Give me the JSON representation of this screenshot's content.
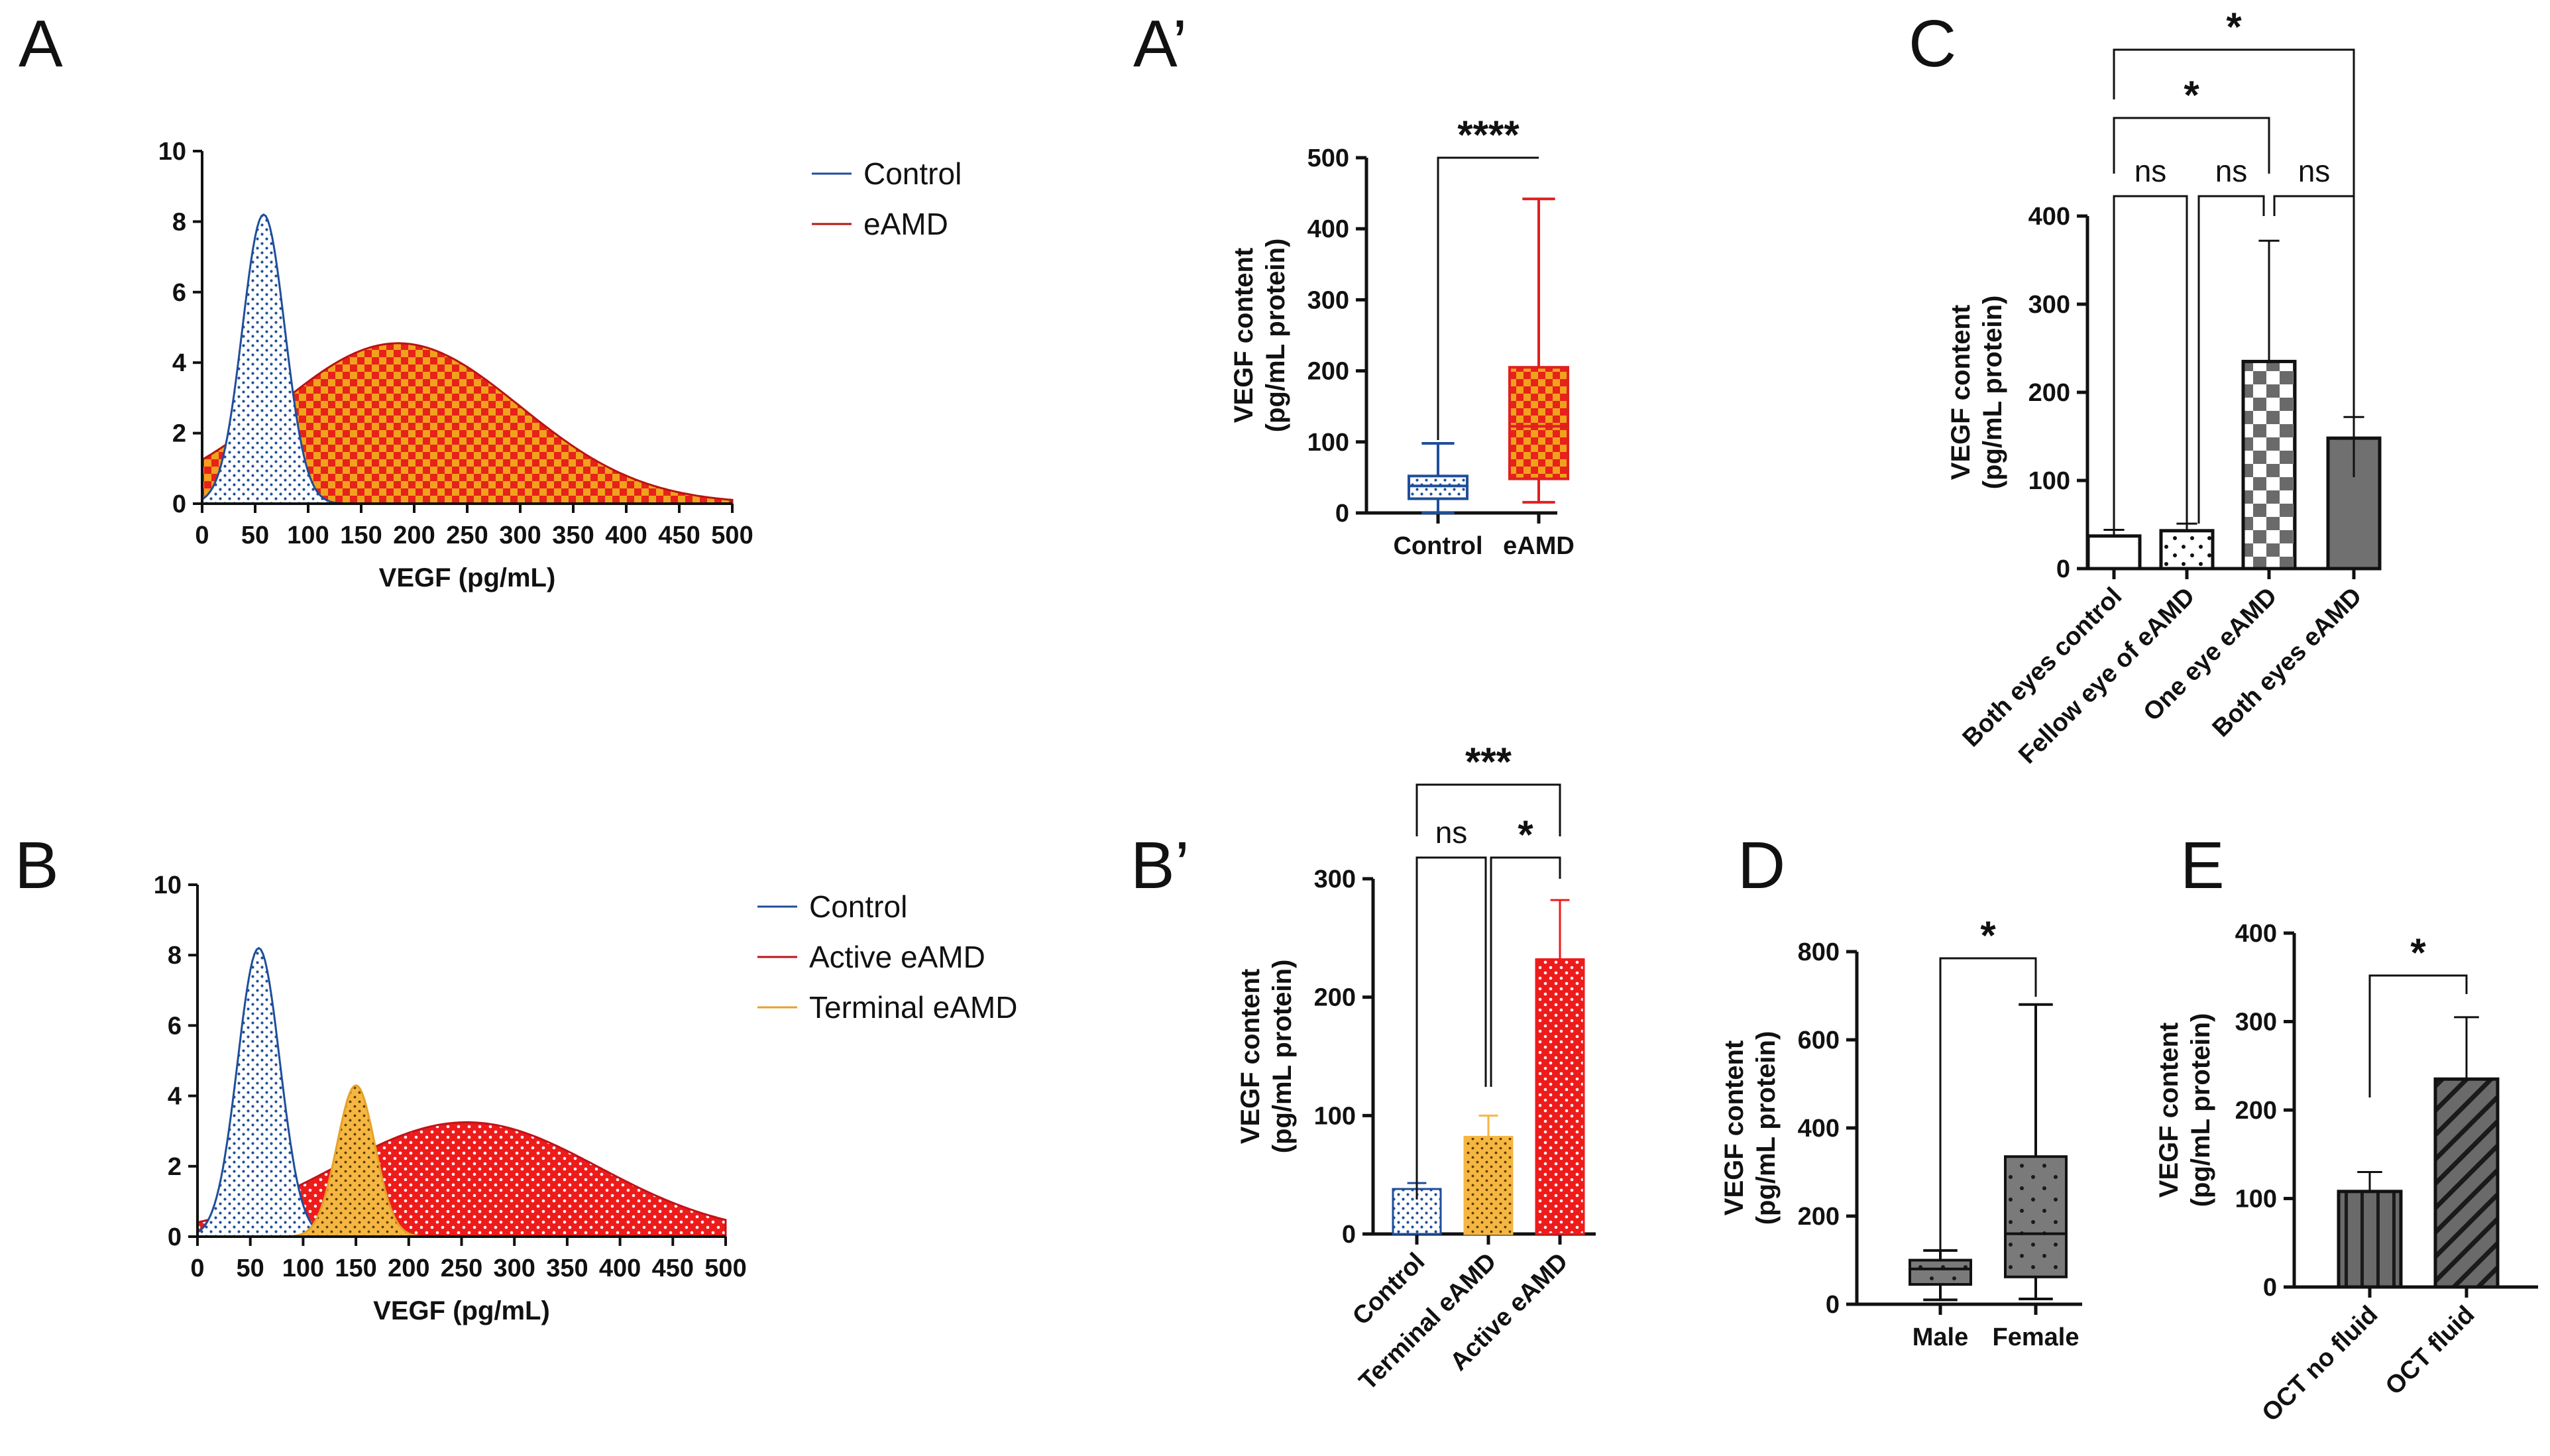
{
  "figure_labels": {
    "A": "A",
    "A_prime": "A’",
    "B": "B",
    "B_prime": "B’",
    "C": "C",
    "D": "D",
    "E": "E"
  },
  "colors": {
    "control": "#1f4e9b",
    "eamd": "#e41a1c",
    "eamd_check": "#f2a21b",
    "terminal": "#f5b642",
    "active": "#ee1b1b",
    "gray": "#707070",
    "darkgray": "#505050"
  },
  "chart_data": [
    {
      "id": "A",
      "type": "area",
      "title": "",
      "xlabel": "VEGF (pg/mL)",
      "ylabel": "",
      "xlim": [
        0,
        500
      ],
      "ylim": [
        0,
        10
      ],
      "xticks": [
        "0",
        "50",
        "100",
        "150",
        "200",
        "250",
        "300",
        "350",
        "400",
        "450",
        "500"
      ],
      "yticks": [
        "0",
        "2",
        "4",
        "6",
        "8",
        "10"
      ],
      "legend": [
        "Control",
        "eAMD"
      ],
      "legend_position": "right",
      "series": [
        {
          "name": "Control",
          "distribution": "normal",
          "mean": 58,
          "sd": 20,
          "peak": 8.2
        },
        {
          "name": "eAMD",
          "distribution": "normal",
          "mean": 185,
          "sd": 115,
          "peak": 4.55
        }
      ]
    },
    {
      "id": "B",
      "type": "area",
      "title": "",
      "xlabel": "VEGF (pg/mL)",
      "ylabel": "",
      "xlim": [
        0,
        500
      ],
      "ylim": [
        0,
        10
      ],
      "xticks": [
        "0",
        "50",
        "100",
        "150",
        "200",
        "250",
        "300",
        "350",
        "400",
        "450",
        "500"
      ],
      "yticks": [
        "0",
        "2",
        "4",
        "6",
        "8",
        "10"
      ],
      "legend": [
        "Control",
        "Active eAMD",
        "Terminal eAMD"
      ],
      "legend_position": "right",
      "series": [
        {
          "name": "Control",
          "distribution": "normal",
          "mean": 58,
          "sd": 20,
          "peak": 8.2
        },
        {
          "name": "Active eAMD",
          "distribution": "normal",
          "mean": 255,
          "sd": 125,
          "peak": 3.25
        },
        {
          "name": "Terminal eAMD",
          "distribution": "normal",
          "mean": 150,
          "sd": 18,
          "peak": 4.3
        }
      ]
    },
    {
      "id": "A_prime",
      "type": "box",
      "ylabel": "VEGF content\n(pg/mL protein)",
      "ylim": [
        0,
        500
      ],
      "yticks": [
        "0",
        "100",
        "200",
        "300",
        "400",
        "500"
      ],
      "categories": [
        "Control",
        "eAMD"
      ],
      "boxes": [
        {
          "name": "Control",
          "min": 0,
          "q1": 20,
          "median": 38,
          "q3": 52,
          "max": 98
        },
        {
          "name": "eAMD",
          "min": 15,
          "q1": 48,
          "median": 122,
          "q3": 205,
          "max": 442
        }
      ],
      "significance": [
        {
          "pair": [
            "Control",
            "eAMD"
          ],
          "label": "****"
        }
      ]
    },
    {
      "id": "B_prime",
      "type": "bar",
      "ylabel": "VEGF content\n(pg/mL protein)",
      "ylim": [
        0,
        300
      ],
      "yticks": [
        "0",
        "100",
        "200",
        "300"
      ],
      "categories": [
        "Control",
        "Terminal eAMD",
        "Active eAMD"
      ],
      "values": [
        38,
        82,
        232
      ],
      "errors": [
        5,
        18,
        50
      ],
      "significance": [
        {
          "pair": [
            "Control",
            "Terminal eAMD"
          ],
          "label": "ns"
        },
        {
          "pair": [
            "Terminal eAMD",
            "Active eAMD"
          ],
          "label": "*"
        },
        {
          "pair": [
            "Control",
            "Active eAMD"
          ],
          "label": "***"
        }
      ]
    },
    {
      "id": "C",
      "type": "bar",
      "ylabel": "VEGF content\n(pg/mL protein)",
      "ylim": [
        0,
        400
      ],
      "yticks": [
        "0",
        "100",
        "200",
        "300",
        "400"
      ],
      "categories": [
        "Both eyes control",
        "Fellow eye of eAMD",
        "One eye eAMD",
        "Both eyes eAMD"
      ],
      "values": [
        37,
        43,
        235,
        148
      ],
      "errors": [
        7,
        8,
        137,
        24
      ],
      "significance": [
        {
          "pair": [
            "Both eyes control",
            "Fellow eye of eAMD"
          ],
          "label": "ns"
        },
        {
          "pair": [
            "Fellow eye of eAMD",
            "One eye eAMD"
          ],
          "label": "ns"
        },
        {
          "pair": [
            "One eye eAMD",
            "Both eyes eAMD"
          ],
          "label": "ns"
        },
        {
          "pair": [
            "Both eyes control",
            "One eye eAMD"
          ],
          "label": "*"
        },
        {
          "pair": [
            "Both eyes control",
            "Both eyes eAMD"
          ],
          "label": "*"
        }
      ]
    },
    {
      "id": "D",
      "type": "box",
      "ylabel": "VEGF content\n(pg/mL protein)",
      "ylim": [
        0,
        800
      ],
      "yticks": [
        "0",
        "200",
        "400",
        "600",
        "800"
      ],
      "categories": [
        "Male",
        "Female"
      ],
      "boxes": [
        {
          "name": "Male",
          "min": 10,
          "q1": 45,
          "median": 80,
          "q3": 100,
          "max": 122
        },
        {
          "name": "Female",
          "min": 12,
          "q1": 62,
          "median": 160,
          "q3": 335,
          "max": 680
        }
      ],
      "significance": [
        {
          "pair": [
            "Male",
            "Female"
          ],
          "label": "*"
        }
      ]
    },
    {
      "id": "E",
      "type": "bar",
      "ylabel": "VEGF content\n(pg/mL protein)",
      "ylim": [
        0,
        400
      ],
      "yticks": [
        "0",
        "100",
        "200",
        "300",
        "400"
      ],
      "categories": [
        "OCT no fluid",
        "OCT fluid"
      ],
      "values": [
        108,
        235
      ],
      "errors": [
        22,
        70
      ],
      "significance": [
        {
          "pair": [
            "OCT no fluid",
            "OCT fluid"
          ],
          "label": "*"
        }
      ]
    }
  ]
}
